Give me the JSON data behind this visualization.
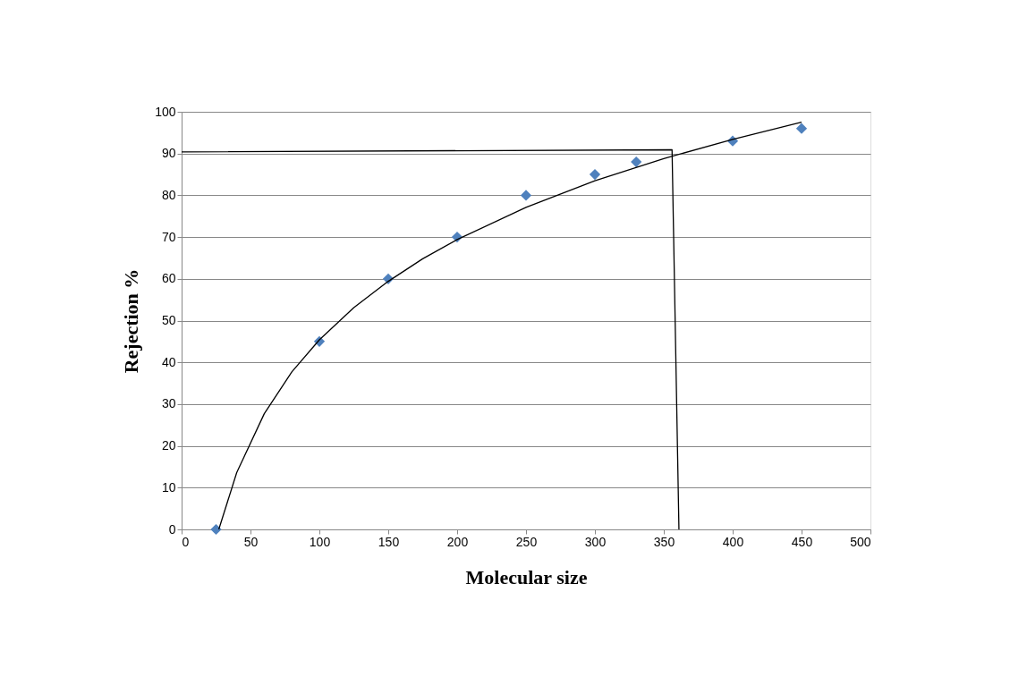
{
  "chart_data": {
    "type": "scatter",
    "xlabel": "Molecular size",
    "ylabel": "Rejection %",
    "xlim": [
      0,
      500
    ],
    "xticks": [
      0,
      50,
      100,
      150,
      200,
      250,
      300,
      350,
      400,
      450,
      500
    ],
    "ylim": [
      0,
      100
    ],
    "yticks": [
      0,
      10,
      20,
      30,
      40,
      50,
      60,
      70,
      80,
      90,
      100
    ],
    "grid": "y",
    "legend": false,
    "series": [
      {
        "color": "#4f81bd",
        "marker": "diamond",
        "x": [
          25,
          100,
          150,
          200,
          250,
          300,
          330,
          400,
          450
        ],
        "values": [
          0,
          45,
          60,
          70,
          80,
          85,
          88,
          93,
          96
        ]
      },
      {
        "type": "line",
        "color": "#000000",
        "marker": "none",
        "x": [
          27,
          40,
          60,
          80,
          100,
          125,
          150,
          175,
          200,
          250,
          300,
          350,
          400,
          450
        ],
        "values": [
          0,
          13.6,
          27.7,
          37.7,
          45.4,
          53.1,
          59.4,
          64.8,
          69.4,
          77.1,
          83.5,
          88.8,
          93.4,
          97.5
        ]
      },
      {
        "type": "line",
        "color": "#000000",
        "marker": "none",
        "x": [
          0,
          356,
          361
        ],
        "values": [
          90.4,
          90.9,
          0
        ]
      }
    ]
  }
}
